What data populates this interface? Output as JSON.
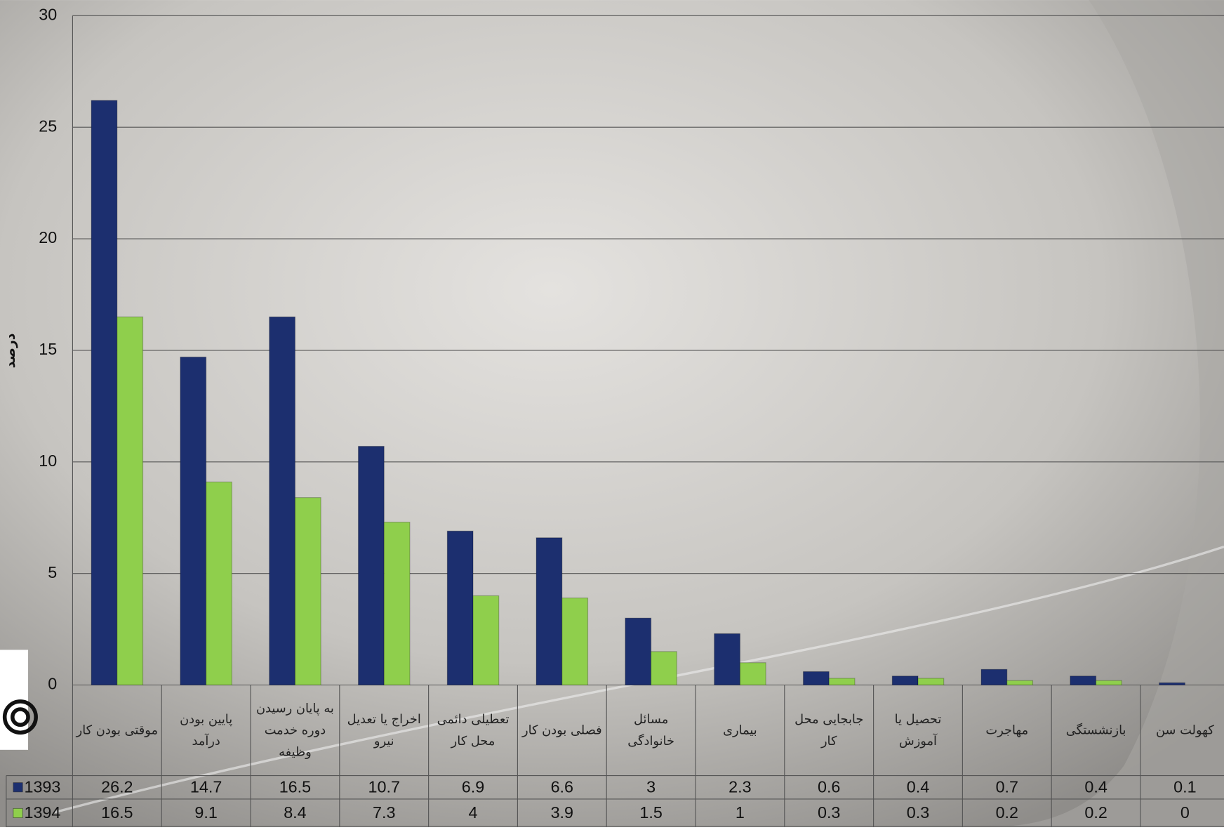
{
  "chart_data": {
    "type": "bar",
    "y_label": "درصد",
    "categories": [
      "موقتی بودن کار",
      "پایین بودن درآمد",
      "به پایان رسیدن دوره خدمت وظیفه",
      "اخراج یا تعدیل نیرو",
      "تعطیلی دائمی محل کار",
      "فصلی بودن کار",
      "مسائل خانوادگی",
      "بیماری",
      "جابجایی محل کار",
      "تحصیل یا آموزش",
      "مهاجرت",
      "بازنشستگی",
      "کهولت سن"
    ],
    "series": [
      {
        "name": "1393",
        "color": "#1c2f6f",
        "values": [
          26.2,
          14.7,
          16.5,
          10.7,
          6.9,
          6.6,
          3,
          2.3,
          0.6,
          0.4,
          0.7,
          0.4,
          0.1
        ]
      },
      {
        "name": "1394",
        "color": "#8fcf4c",
        "values": [
          16.5,
          9.1,
          8.4,
          7.3,
          4,
          3.9,
          1.5,
          1,
          0.3,
          0.3,
          0.2,
          0.2,
          0
        ]
      }
    ],
    "ylim": [
      0,
      30
    ],
    "yticks": [
      0,
      5,
      10,
      15,
      20,
      25,
      30
    ],
    "grid": true
  }
}
